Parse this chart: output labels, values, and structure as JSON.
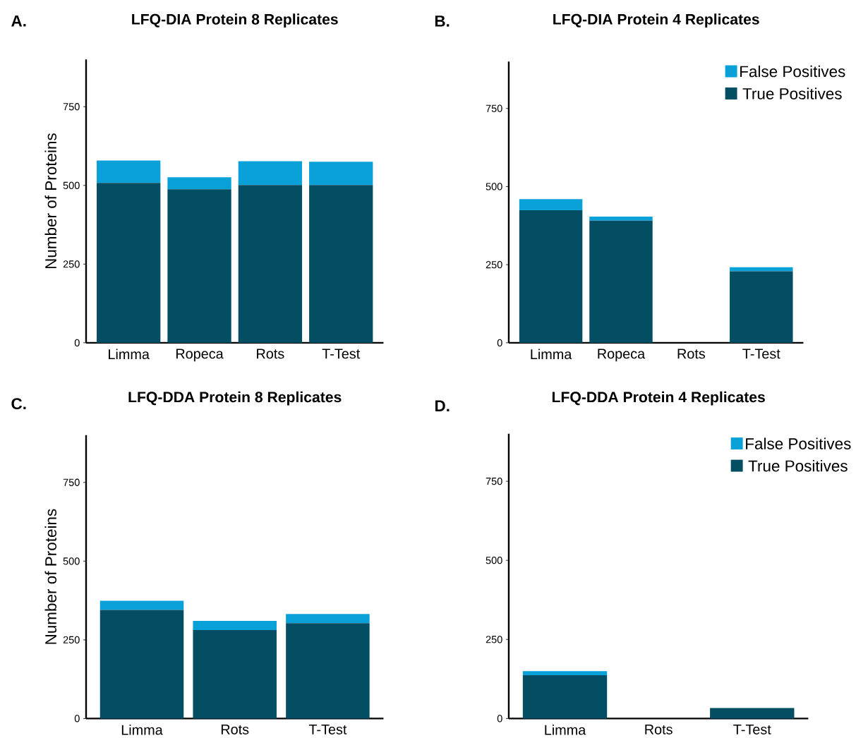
{
  "chart_data": [
    {
      "type": "bar",
      "title": "LFQ-DIA Protein 8 Replicates",
      "ylabel": "Number of Proteins",
      "annotations": [
        "A."
      ],
      "stacked": true,
      "categories": [
        "Limma",
        "Ropeca",
        "Rots",
        "T-Test"
      ],
      "ylim": [
        0,
        900
      ],
      "yticks": [
        0,
        250,
        500,
        750
      ],
      "legend": false,
      "series": [
        {
          "color": "#044e63",
          "values": [
            508,
            488,
            501,
            501
          ]
        },
        {
          "color": "#0aa1d9",
          "values": [
            71,
            38,
            76,
            74
          ]
        }
      ]
    },
    {
      "type": "bar",
      "title": "LFQ-DIA Protein 4 Replicates",
      "annotations": [
        "B."
      ],
      "stacked": true,
      "categories": [
        "Limma",
        "Ropeca",
        "Rots",
        "T-Test"
      ],
      "ylim": [
        0,
        900
      ],
      "yticks": [
        0,
        250,
        500,
        750
      ],
      "legend": "top right",
      "series": [
        {
          "name": "True Positives",
          "color": "#044e63",
          "values": [
            424,
            391,
            0,
            229
          ]
        },
        {
          "name": "False Positives",
          "color": "#0aa1d9",
          "values": [
            36,
            13,
            0,
            13
          ]
        }
      ]
    },
    {
      "type": "bar",
      "title": "LFQ-DDA Protein 8 Replicates",
      "ylabel": "Number of Proteins",
      "annotations": [
        "C."
      ],
      "stacked": true,
      "categories": [
        "Limma",
        "Rots",
        "T-Test"
      ],
      "ylim": [
        0,
        900
      ],
      "yticks": [
        0,
        250,
        500,
        750
      ],
      "legend": false,
      "series": [
        {
          "color": "#044e63",
          "values": [
            345,
            281,
            303
          ]
        },
        {
          "color": "#0aa1d9",
          "values": [
            29,
            29,
            29
          ]
        }
      ]
    },
    {
      "type": "bar",
      "title": "LFQ-DDA Protein 4 Replicates",
      "annotations": [
        "D."
      ],
      "stacked": true,
      "categories": [
        "Limma",
        "Rots",
        "T-Test"
      ],
      "ylim": [
        0,
        900
      ],
      "yticks": [
        0,
        250,
        500,
        750
      ],
      "legend": "top right",
      "series": [
        {
          "name": "True Positives",
          "color": "#044e63",
          "values": [
            137,
            0,
            33
          ]
        },
        {
          "name": "False Positives",
          "color": "#0aa1d9",
          "values": [
            13,
            0,
            0
          ]
        }
      ]
    }
  ]
}
